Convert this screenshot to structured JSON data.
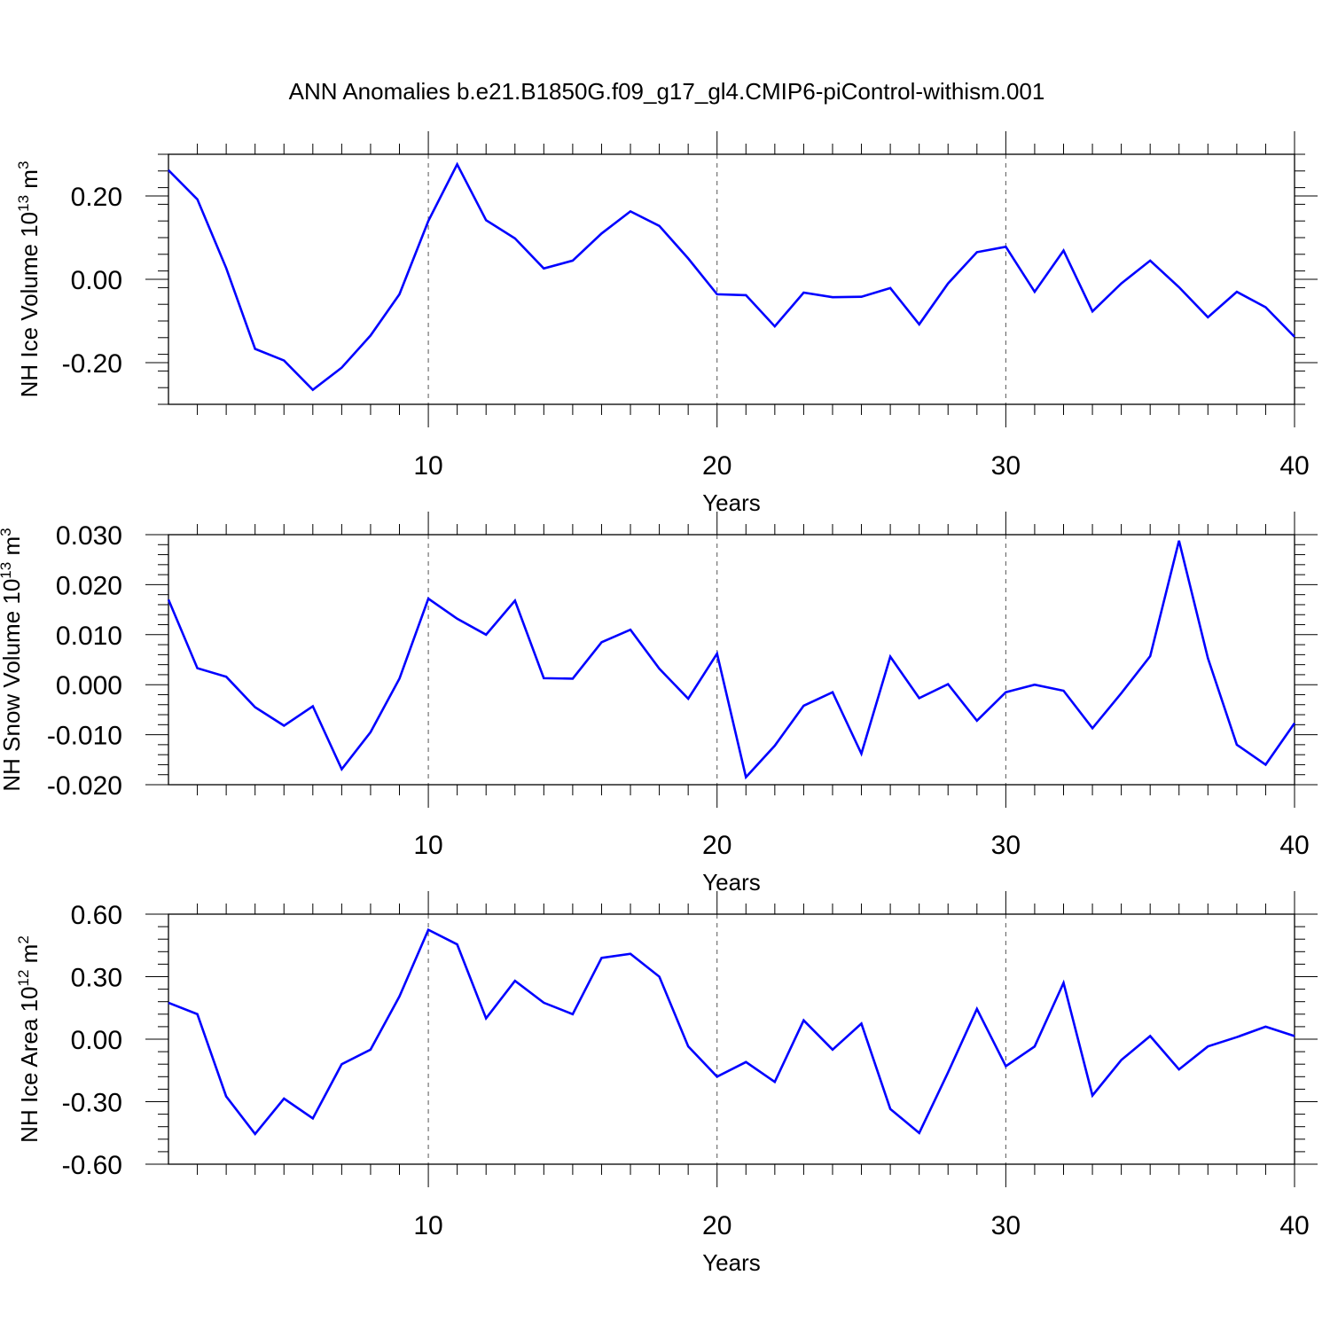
{
  "title": "ANN Anomalies b.e21.B1850G.f09_g17_gl4.CMIP6-piControl-withism.001",
  "chart_data": [
    {
      "type": "line",
      "ylabel": "NH Ice Volume",
      "ylabel_unit_base": "10",
      "ylabel_unit_exp": "13",
      "ylabel_unit_m": "m",
      "ylabel_unit_m_exp": "3",
      "xlabel": "Years",
      "ylim": [
        -0.3,
        0.3
      ],
      "xlim": [
        1,
        40
      ],
      "yticks": [
        -0.2,
        0.0,
        0.2
      ],
      "ytick_labels": [
        "-0.20",
        "0.00",
        "0.20"
      ],
      "xticks": [
        10,
        20,
        30,
        40
      ],
      "xtick_labels": [
        "10",
        "20",
        "30",
        "40"
      ],
      "line_color": "#0000ff",
      "x": [
        1,
        2,
        3,
        4,
        5,
        6,
        7,
        8,
        9,
        10,
        11,
        12,
        13,
        14,
        15,
        16,
        17,
        18,
        19,
        20,
        21,
        22,
        23,
        24,
        25,
        26,
        27,
        28,
        29,
        30,
        31,
        32,
        33,
        34,
        35,
        36,
        37,
        38,
        39,
        40
      ],
      "values": [
        0.262,
        0.192,
        0.027,
        -0.167,
        -0.195,
        -0.265,
        -0.212,
        -0.135,
        -0.036,
        0.14,
        0.276,
        0.142,
        0.098,
        0.026,
        0.045,
        0.11,
        0.163,
        0.128,
        0.05,
        -0.036,
        -0.038,
        -0.113,
        -0.032,
        -0.043,
        -0.042,
        -0.021,
        -0.108,
        -0.01,
        0.065,
        0.078,
        -0.03,
        0.069,
        -0.077,
        -0.01,
        0.045,
        -0.019,
        -0.091,
        -0.03,
        -0.067,
        -0.138
      ]
    },
    {
      "type": "line",
      "ylabel": "NH Snow Volume",
      "ylabel_unit_base": "10",
      "ylabel_unit_exp": "13",
      "ylabel_unit_m": "m",
      "ylabel_unit_m_exp": "3",
      "xlabel": "Years",
      "ylim": [
        -0.02,
        0.03
      ],
      "xlim": [
        1,
        40
      ],
      "yticks": [
        -0.02,
        -0.01,
        0.0,
        0.01,
        0.02,
        0.03
      ],
      "ytick_labels": [
        "-0.020",
        "-0.010",
        "0.000",
        "0.010",
        "0.020",
        "0.030"
      ],
      "xticks": [
        10,
        20,
        30,
        40
      ],
      "xtick_labels": [
        "10",
        "20",
        "30",
        "40"
      ],
      "line_color": "#0000ff",
      "x": [
        1,
        2,
        3,
        4,
        5,
        6,
        7,
        8,
        9,
        10,
        11,
        12,
        13,
        14,
        15,
        16,
        17,
        18,
        19,
        20,
        21,
        22,
        23,
        24,
        25,
        26,
        27,
        28,
        29,
        30,
        31,
        32,
        33,
        34,
        35,
        36,
        37,
        38,
        39,
        40
      ],
      "values": [
        0.017,
        0.0033,
        0.0016,
        -0.0045,
        -0.0082,
        -0.0043,
        -0.0169,
        -0.0095,
        0.0012,
        0.0172,
        0.0132,
        0.01,
        0.0168,
        0.0013,
        0.0012,
        0.0085,
        0.011,
        0.0032,
        -0.0028,
        0.0062,
        -0.0185,
        -0.0122,
        -0.0042,
        -0.0015,
        -0.0138,
        0.0056,
        -0.0027,
        0.0001,
        -0.0072,
        -0.0015,
        0.0,
        -0.0012,
        -0.0087,
        -0.0017,
        0.0057,
        0.0288,
        0.0053,
        -0.012,
        -0.016,
        -0.0077
      ]
    },
    {
      "type": "line",
      "ylabel": "NH Ice Area",
      "ylabel_unit_base": "10",
      "ylabel_unit_exp": "12",
      "ylabel_unit_m": "m",
      "ylabel_unit_m_exp": "2",
      "xlabel": "Years",
      "ylim": [
        -0.6,
        0.6
      ],
      "xlim": [
        1,
        40
      ],
      "yticks": [
        -0.6,
        -0.3,
        0.0,
        0.3,
        0.6
      ],
      "ytick_labels": [
        "-0.60",
        "-0.30",
        "0.00",
        "0.30",
        "0.60"
      ],
      "xticks": [
        10,
        20,
        30,
        40
      ],
      "xtick_labels": [
        "10",
        "20",
        "30",
        "40"
      ],
      "line_color": "#0000ff",
      "x": [
        1,
        2,
        3,
        4,
        5,
        6,
        7,
        8,
        9,
        10,
        11,
        12,
        13,
        14,
        15,
        16,
        17,
        18,
        19,
        20,
        21,
        22,
        23,
        24,
        25,
        26,
        27,
        28,
        29,
        30,
        31,
        32,
        33,
        34,
        35,
        36,
        37,
        38,
        39,
        40
      ],
      "values": [
        0.175,
        0.12,
        -0.275,
        -0.455,
        -0.285,
        -0.38,
        -0.12,
        -0.05,
        0.205,
        0.525,
        0.455,
        0.1,
        0.28,
        0.175,
        0.12,
        0.39,
        0.41,
        0.3,
        -0.035,
        -0.18,
        -0.11,
        -0.205,
        0.09,
        -0.05,
        0.075,
        -0.335,
        -0.45,
        -0.16,
        0.145,
        -0.13,
        -0.035,
        0.27,
        -0.27,
        -0.1,
        0.015,
        -0.145,
        -0.035,
        0.01,
        0.06,
        0.015
      ]
    }
  ]
}
